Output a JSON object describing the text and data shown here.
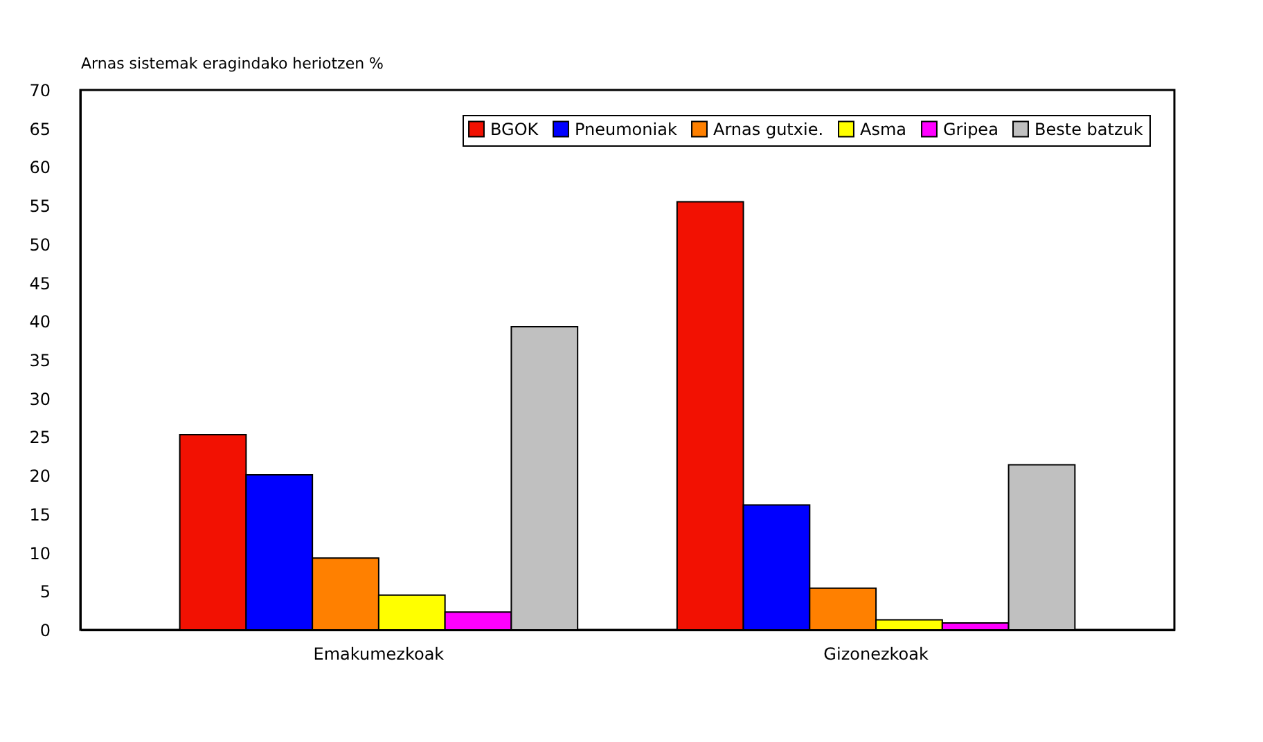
{
  "chart_data": {
    "type": "bar",
    "ylabel": "Arnas sistemak eragindako heriotzen %",
    "categories": [
      "Emakumezkoak",
      "Gizonezkoak"
    ],
    "series": [
      {
        "name": "BGOK",
        "color": "#f21102",
        "values": [
          25.3,
          55.5
        ]
      },
      {
        "name": "Pneumoniak",
        "color": "#0000ff",
        "values": [
          20.1,
          16.2
        ]
      },
      {
        "name": "Arnas gutxie.",
        "color": "#ff8000",
        "values": [
          9.3,
          5.4
        ]
      },
      {
        "name": "Asma",
        "color": "#ffff00",
        "values": [
          4.5,
          1.3
        ]
      },
      {
        "name": "Gripea",
        "color": "#ff00ff",
        "values": [
          2.3,
          0.9
        ]
      },
      {
        "name": "Beste batzuk",
        "color": "#c0c0c0",
        "values": [
          39.3,
          21.4
        ]
      }
    ],
    "ylim": [
      0,
      70
    ],
    "yticks": [
      0,
      5,
      10,
      15,
      20,
      25,
      30,
      35,
      40,
      45,
      50,
      55,
      60,
      65,
      70
    ],
    "grid": false,
    "legend": "top right"
  }
}
